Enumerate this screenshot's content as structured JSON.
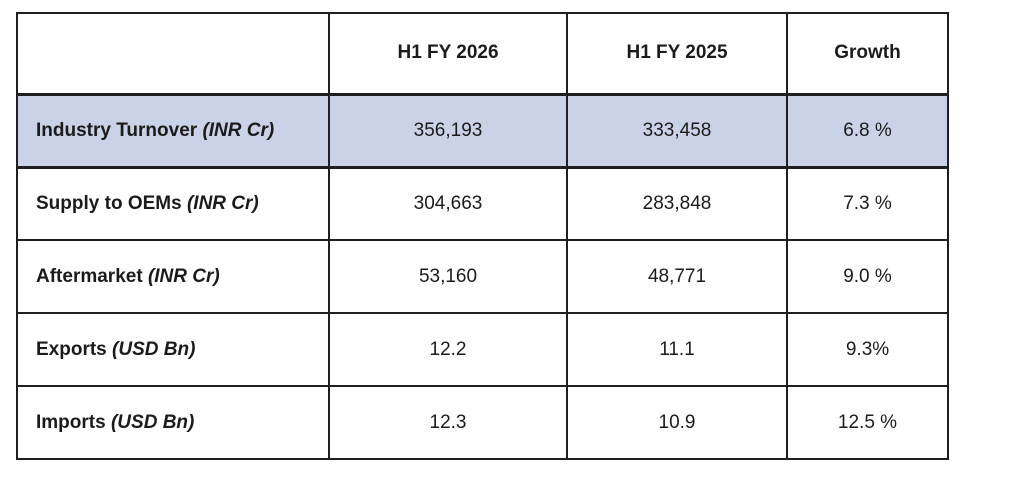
{
  "colors": {
    "background": "#ffffff",
    "text": "#1b1b1b",
    "border": "#1f1f1f",
    "highlight_row_bg": "#c9d2e6"
  },
  "table": {
    "columns": [
      "",
      "H1 FY 2026",
      "H1 FY 2025",
      "Growth"
    ],
    "rows": [
      {
        "label": "Industry Turnover",
        "unit": "(INR Cr)",
        "h1fy2026": "356,193",
        "h1fy2025": "333,458",
        "growth": "6.8 %",
        "highlighted": true
      },
      {
        "label": "Supply to OEMs",
        "unit": "(INR Cr)",
        "h1fy2026": "304,663",
        "h1fy2025": "283,848",
        "growth": "7.3 %",
        "highlighted": false
      },
      {
        "label": "Aftermarket",
        "unit": "(INR Cr)",
        "h1fy2026": "53,160",
        "h1fy2025": "48,771",
        "growth": "9.0 %",
        "highlighted": false
      },
      {
        "label": "Exports",
        "unit": "(USD Bn)",
        "h1fy2026": "12.2",
        "h1fy2025": "11.1",
        "growth": "9.3%",
        "highlighted": false
      },
      {
        "label": "Imports",
        "unit": "(USD Bn)",
        "h1fy2026": "12.3",
        "h1fy2025": "10.9",
        "growth": "12.5 %",
        "highlighted": false
      }
    ]
  },
  "chart_data": {
    "type": "table",
    "title": "",
    "columns": [
      "",
      "H1 FY 2026",
      "H1 FY 2025",
      "Growth"
    ],
    "rows": [
      [
        "Industry Turnover (INR Cr)",
        "356,193",
        "333,458",
        "6.8 %"
      ],
      [
        "Supply to OEMs (INR Cr)",
        "304,663",
        "283,848",
        "7.3 %"
      ],
      [
        "Aftermarket (INR Cr)",
        "53,160",
        "48,771",
        "9.0 %"
      ],
      [
        "Exports (USD Bn)",
        "12.2",
        "11.1",
        "9.3%"
      ],
      [
        "Imports (USD Bn)",
        "12.3",
        "10.9",
        "12.5 %"
      ]
    ],
    "numeric": {
      "industry_turnover_inr_cr": {
        "h1_fy2026": 356193,
        "h1_fy2025": 333458,
        "growth_pct": 6.8
      },
      "supply_to_oems_inr_cr": {
        "h1_fy2026": 304663,
        "h1_fy2025": 283848,
        "growth_pct": 7.3
      },
      "aftermarket_inr_cr": {
        "h1_fy2026": 53160,
        "h1_fy2025": 48771,
        "growth_pct": 9.0
      },
      "exports_usd_bn": {
        "h1_fy2026": 12.2,
        "h1_fy2025": 11.1,
        "growth_pct": 9.3
      },
      "imports_usd_bn": {
        "h1_fy2026": 12.3,
        "h1_fy2025": 10.9,
        "growth_pct": 12.5
      }
    },
    "layout_hints": {
      "highlighted_row": "Industry Turnover (INR Cr)",
      "highlight_color": "#c9d2e6",
      "grid": true
    }
  }
}
